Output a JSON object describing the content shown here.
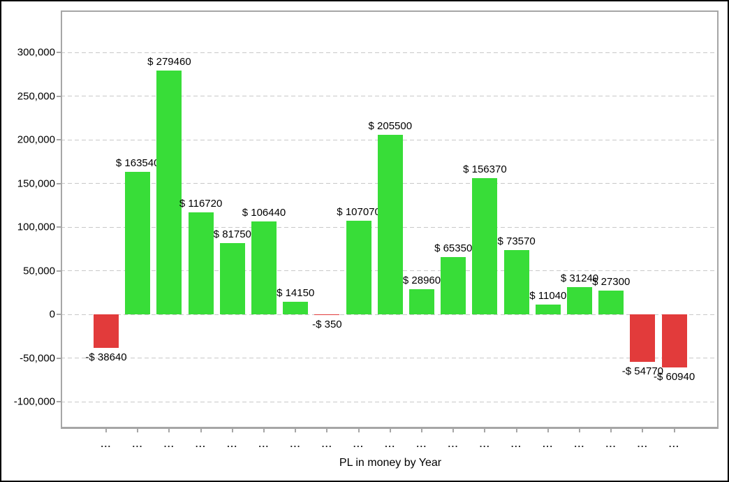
{
  "chart_data": {
    "type": "bar",
    "title": "",
    "xlabel": "PL in money by Year",
    "ylabel": "",
    "categories": [
      "...",
      "...",
      "...",
      "...",
      "...",
      "...",
      "...",
      "...",
      "...",
      "...",
      "...",
      "...",
      "...",
      "...",
      "...",
      "...",
      "...",
      "...",
      "..."
    ],
    "values": [
      -38640,
      163540,
      279460,
      116720,
      81750,
      106440,
      14150,
      -350,
      107070,
      205500,
      28960,
      65350,
      156370,
      73570,
      11040,
      31240,
      27300,
      -54770,
      -60940
    ],
    "bar_labels": [
      "-$ 38640",
      "$ 163540",
      "$ 279460",
      "$ 116720",
      "$ 81750",
      "$ 106440",
      "$ 14150",
      "-$ 350",
      "$ 107070",
      "$ 205500",
      "$ 28960",
      "$ 65350",
      "$ 156370",
      "$ 73570",
      "$ 11040",
      "$ 31240",
      "$ 27300",
      "-$ 54770",
      "-$ 60940"
    ],
    "y_ticks": [
      {
        "label": "300,000",
        "value": 300000
      },
      {
        "label": "250,000",
        "value": 250000
      },
      {
        "label": "200,000",
        "value": 200000
      },
      {
        "label": "150,000",
        "value": 150000
      },
      {
        "label": "100,000",
        "value": 100000
      },
      {
        "label": "50,000",
        "value": 50000
      },
      {
        "label": "0",
        "value": 0
      },
      {
        "label": "-50,000",
        "value": -50000
      },
      {
        "label": "-100,000",
        "value": -100000
      }
    ],
    "ylim": [
      -131200,
      348000
    ],
    "grid": "horizontal-dashed",
    "legend": "none",
    "colors": {
      "positive": "#38DD38",
      "negative": "#E23B3B",
      "grid": "#c8c8c8",
      "axis": "#a6a6a6",
      "text": "#000000"
    }
  }
}
